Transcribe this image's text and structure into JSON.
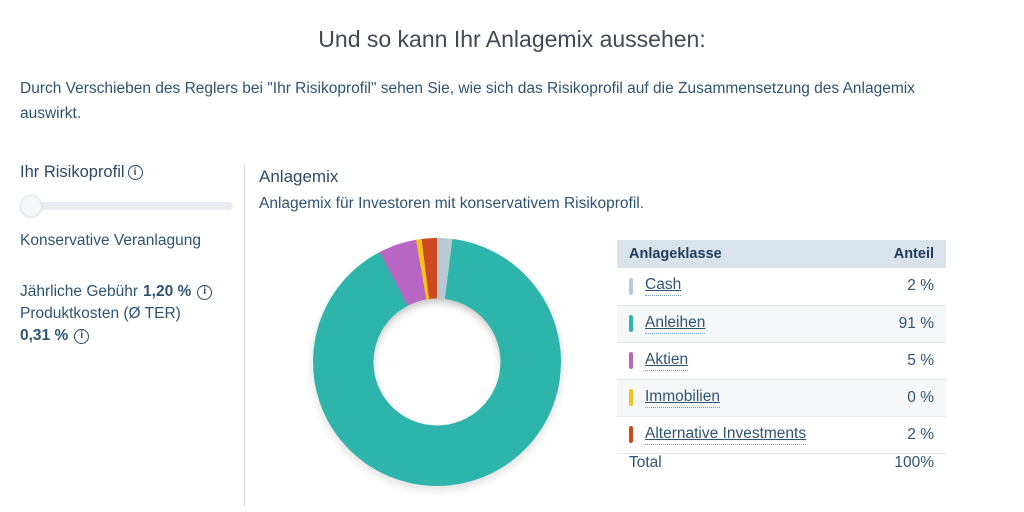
{
  "header": {
    "title": "Und so kann Ihr Anlagemix aussehen:",
    "description": "Durch Verschieben des Reglers bei \"Ihr Risikoprofil\" sehen Sie, wie sich das Risikoprofil auf die Zusammensetzung des Anlagemix auswirkt."
  },
  "sidebar": {
    "risk_profile": {
      "label": "Ihr Risikoprofil",
      "info_icon": "info-circle-icon",
      "slider_value_percent": 0,
      "selected_profile": "Konservative Veranlagung"
    },
    "fees": {
      "annual_fee_label": "Jährliche Gebühr",
      "annual_fee_value": "1,20 %",
      "product_cost_label": "Produktkosten (Ø TER)",
      "product_cost_value": "0,31 %"
    }
  },
  "main": {
    "heading": "Anlagemix",
    "subheading": "Anlagemix für Investoren mit konservativem Risikoprofil.",
    "table": {
      "col_asset_class": "Anlageklasse",
      "col_share": "Anteil",
      "rows": [
        {
          "label": "Cash",
          "value": "2 %",
          "color": "#b9c9d4"
        },
        {
          "label": "Anleihen",
          "value": "91 %",
          "color": "#2eb5ab"
        },
        {
          "label": "Aktien",
          "value": "5 %",
          "color": "#b767c3"
        },
        {
          "label": "Immobilien",
          "value": "0 %",
          "color": "#f6c21a"
        },
        {
          "label": "Alternative Investments",
          "value": "2 %",
          "color": "#cd4a21"
        }
      ],
      "total": {
        "label": "Total",
        "value": "100%"
      }
    }
  },
  "chart_data": {
    "type": "pie",
    "subtype": "donut",
    "title": "Anlagemix",
    "categories": [
      "Cash",
      "Anleihen",
      "Aktien",
      "Immobilien",
      "Alternative Investments"
    ],
    "values": [
      2,
      91,
      5,
      0,
      2
    ],
    "unit": "%",
    "colors": [
      "#b9c9d4",
      "#2eb5ab",
      "#b767c3",
      "#f6c21a",
      "#cd4a21"
    ],
    "start_angle_deg": 0,
    "direction": "clockwise",
    "legend_position": "table-right"
  },
  "colors": {
    "accent_teal": "#2eb5ab",
    "text_navy": "#2e5472",
    "table_header_bg": "#dae3eb",
    "divider": "#d9dee3"
  }
}
